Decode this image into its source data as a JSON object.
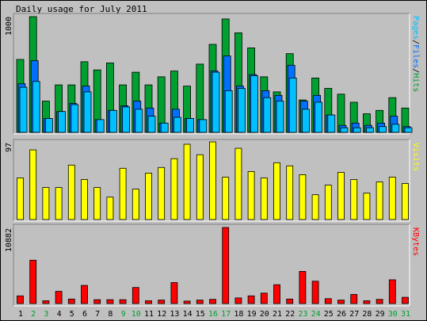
{
  "title": "Daily usage for July 2011",
  "colors": {
    "background": "#c0c0c0",
    "panel": "#c0c0c0",
    "hits": "#00a030",
    "files": "#0070ff",
    "pages": "#00c0ff",
    "visits": "#ffff00",
    "kbytes": "#ff0000",
    "weekend_label": "#00a030",
    "weekday_label": "#000000"
  },
  "chart_data": [
    {
      "type": "bar",
      "title": "Daily usage for July 2011",
      "panel": "top",
      "scale_label": "1000",
      "legend": {
        "pages": "Pages",
        "sep1": "/",
        "files": "Files",
        "sep2": "/",
        "hits": "Hits"
      },
      "categories": [
        "1",
        "2",
        "3",
        "4",
        "5",
        "6",
        "7",
        "8",
        "9",
        "10",
        "11",
        "12",
        "13",
        "14",
        "15",
        "16",
        "17",
        "18",
        "19",
        "20",
        "21",
        "22",
        "23",
        "24",
        "25",
        "26",
        "27",
        "28",
        "29",
        "30",
        "31"
      ],
      "weekend_days": [
        "2",
        "3",
        "9",
        "10",
        "16",
        "17",
        "23",
        "24",
        "30",
        "31"
      ],
      "ylim": [
        0,
        1000
      ],
      "series": [
        {
          "name": "Hits",
          "values": [
            630,
            1000,
            270,
            410,
            410,
            610,
            540,
            600,
            410,
            520,
            410,
            480,
            530,
            400,
            590,
            760,
            980,
            860,
            730,
            480,
            350,
            680,
            280,
            470,
            380,
            330,
            260,
            160,
            190,
            300,
            210
          ]
        },
        {
          "name": "Files",
          "values": [
            420,
            620,
            120,
            180,
            250,
            400,
            110,
            190,
            230,
            270,
            210,
            80,
            200,
            120,
            110,
            530,
            660,
            400,
            500,
            360,
            320,
            580,
            270,
            320,
            150,
            60,
            80,
            60,
            80,
            140,
            50
          ]
        },
        {
          "name": "Pages",
          "values": [
            390,
            440,
            120,
            180,
            240,
            350,
            110,
            190,
            220,
            200,
            140,
            80,
            130,
            120,
            110,
            520,
            360,
            380,
            490,
            300,
            270,
            470,
            200,
            260,
            150,
            40,
            40,
            40,
            50,
            70,
            40
          ]
        }
      ]
    },
    {
      "type": "bar",
      "panel": "middle",
      "scale_label": "97",
      "legend": {
        "visits": "Visits"
      },
      "categories": [
        "1",
        "2",
        "3",
        "4",
        "5",
        "6",
        "7",
        "8",
        "9",
        "10",
        "11",
        "12",
        "13",
        "14",
        "15",
        "16",
        "17",
        "18",
        "19",
        "20",
        "21",
        "22",
        "23",
        "24",
        "25",
        "26",
        "27",
        "28",
        "29",
        "30",
        "31"
      ],
      "ylim": [
        0,
        97
      ],
      "series": [
        {
          "name": "Visits",
          "values": [
            52,
            87,
            40,
            40,
            68,
            50,
            40,
            28,
            64,
            38,
            58,
            65,
            76,
            94,
            81,
            97,
            53,
            89,
            60,
            52,
            71,
            67,
            56,
            31,
            43,
            59,
            50,
            33,
            47,
            53,
            45
          ]
        }
      ]
    },
    {
      "type": "bar",
      "panel": "bottom",
      "scale_label": "10882",
      "legend": {
        "kbytes": "KBytes"
      },
      "categories": [
        "1",
        "2",
        "3",
        "4",
        "5",
        "6",
        "7",
        "8",
        "9",
        "10",
        "11",
        "12",
        "13",
        "14",
        "15",
        "16",
        "17",
        "18",
        "19",
        "20",
        "21",
        "22",
        "23",
        "24",
        "25",
        "26",
        "27",
        "28",
        "29",
        "30",
        "31"
      ],
      "ylim": [
        0,
        10882
      ],
      "series": [
        {
          "name": "KBytes",
          "values": [
            1100,
            6200,
            400,
            1750,
            650,
            2600,
            550,
            550,
            550,
            2300,
            400,
            500,
            3000,
            350,
            500,
            600,
            10882,
            800,
            1100,
            1500,
            2700,
            650,
            4600,
            3200,
            700,
            500,
            1300,
            400,
            600,
            3400,
            900
          ]
        }
      ]
    }
  ]
}
